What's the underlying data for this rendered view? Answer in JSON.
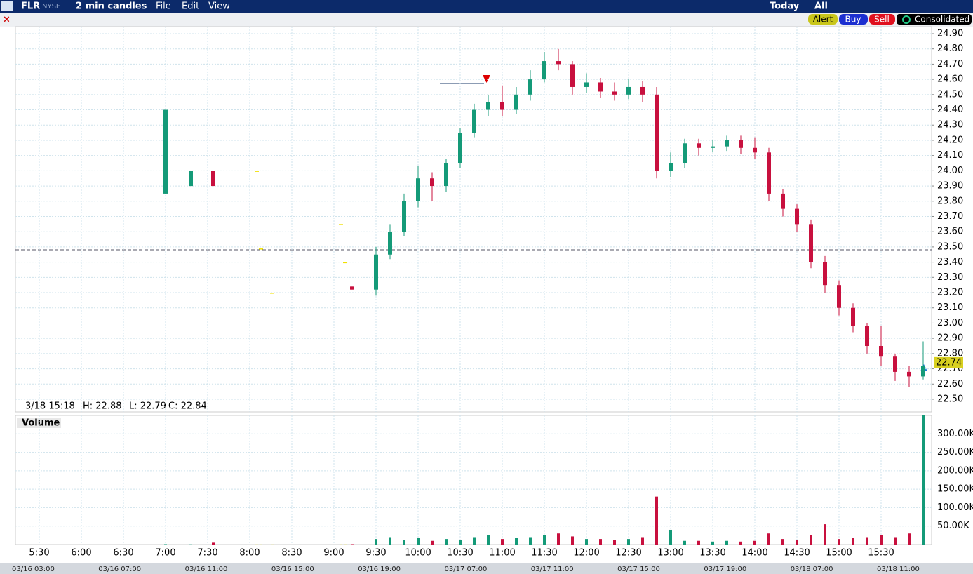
{
  "window": {
    "symbol": "FLR",
    "exchange": "NYSE",
    "interval": "2 min candles",
    "menu": [
      "File",
      "Edit",
      "View"
    ],
    "range": "Today",
    "session": "All",
    "buttons": [
      "Alert",
      "Buy",
      "Sell",
      "Consolidated"
    ],
    "info": [
      "3/18 15:18",
      "H: 22.88",
      "L: 22.79",
      "C: 22.84"
    ],
    "timeline": [
      "03/16 03:00",
      "03/16 07:00",
      "03/16 11:00",
      "03/16 15:00",
      "03/16 19:00",
      "03/17 07:00",
      "03/17 11:00",
      "03/17 15:00",
      "03/17 19:00",
      "03/18 07:00",
      "03/18 11:00"
    ]
  },
  "chart_data": [
    {
      "type": "candlestick",
      "up_color": "#149a78",
      "down_color": "#c8103e",
      "flat_color": "#f0e000",
      "grid": true,
      "last_price": 22.74,
      "x": [
        "7:00",
        "7:18",
        "7:34",
        "8:05",
        "8:08",
        "8:16",
        "9:05",
        "9:08",
        "9:13",
        "9:30",
        "9:40",
        "9:50",
        "10:00",
        "10:10",
        "10:20",
        "10:30",
        "10:40",
        "10:50",
        "11:00",
        "11:10",
        "11:20",
        "11:30",
        "11:40",
        "11:50",
        "12:00",
        "12:10",
        "12:20",
        "12:30",
        "12:40",
        "12:50",
        "13:00",
        "13:10",
        "13:20",
        "13:30",
        "13:40",
        "13:50",
        "14:00",
        "14:10",
        "14:20",
        "14:30",
        "14:40",
        "14:50",
        "15:00",
        "15:10",
        "15:20",
        "15:30",
        "15:40",
        "15:50",
        "16:00"
      ],
      "open": [
        23.85,
        23.9,
        24.0,
        24.0,
        23.49,
        23.2,
        23.65,
        23.4,
        23.24,
        23.22,
        23.45,
        23.6,
        23.8,
        23.95,
        23.9,
        24.05,
        24.25,
        24.4,
        24.45,
        24.4,
        24.5,
        24.6,
        24.72,
        24.7,
        24.55,
        24.58,
        24.52,
        24.5,
        24.55,
        24.5,
        24.0,
        24.05,
        24.18,
        24.15,
        24.16,
        24.2,
        24.15,
        24.12,
        23.85,
        23.75,
        23.65,
        23.4,
        23.25,
        23.1,
        22.98,
        22.85,
        22.78,
        22.68,
        22.65
      ],
      "high": [
        24.4,
        24.0,
        24.0,
        24.0,
        23.49,
        23.2,
        23.65,
        23.4,
        23.24,
        23.5,
        23.65,
        23.85,
        24.03,
        23.99,
        24.08,
        24.28,
        24.44,
        24.5,
        24.56,
        24.55,
        24.66,
        24.78,
        24.8,
        24.72,
        24.64,
        24.61,
        24.58,
        24.6,
        24.59,
        24.55,
        24.12,
        24.21,
        24.21,
        24.2,
        24.23,
        24.23,
        24.22,
        24.15,
        23.88,
        23.78,
        23.68,
        23.44,
        23.28,
        23.13,
        23.0,
        22.98,
        22.8,
        22.72,
        22.88
      ],
      "low": [
        23.85,
        23.9,
        23.9,
        24.0,
        23.49,
        23.2,
        23.65,
        23.4,
        23.22,
        23.18,
        23.42,
        23.57,
        23.76,
        23.8,
        23.86,
        24.02,
        24.22,
        24.36,
        24.36,
        24.37,
        24.46,
        24.58,
        24.66,
        24.5,
        24.51,
        24.48,
        24.46,
        24.47,
        24.45,
        23.95,
        23.96,
        24.02,
        24.1,
        24.12,
        24.13,
        24.11,
        24.08,
        23.8,
        23.7,
        23.6,
        23.36,
        23.2,
        23.05,
        22.94,
        22.8,
        22.72,
        22.62,
        22.58,
        22.63
      ],
      "close": [
        24.4,
        24.0,
        23.9,
        24.0,
        23.49,
        23.2,
        23.65,
        23.4,
        23.22,
        23.45,
        23.6,
        23.8,
        23.95,
        23.9,
        24.05,
        24.25,
        24.4,
        24.45,
        24.4,
        24.5,
        24.6,
        24.72,
        24.7,
        24.55,
        24.58,
        24.52,
        24.5,
        24.55,
        24.5,
        24.0,
        24.05,
        24.18,
        24.15,
        24.16,
        24.2,
        24.15,
        24.12,
        23.85,
        23.75,
        23.65,
        23.4,
        23.25,
        23.1,
        22.98,
        22.85,
        22.78,
        22.68,
        22.65,
        22.72
      ],
      "ylim": [
        22.417,
        24.946
      ],
      "yticks": [
        {
          "value": 22.5,
          "label": "22.50"
        },
        {
          "value": 22.6,
          "label": "22.60"
        },
        {
          "value": 22.7,
          "label": "22.70"
        },
        {
          "value": 22.8,
          "label": "22.80"
        },
        {
          "value": 22.9,
          "label": "22.90"
        },
        {
          "value": 23.0,
          "label": "23.00"
        },
        {
          "value": 23.1,
          "label": "23.10"
        },
        {
          "value": 23.2,
          "label": "23.20"
        },
        {
          "value": 23.3,
          "label": "23.30"
        },
        {
          "value": 23.4,
          "label": "23.40"
        },
        {
          "value": 23.5,
          "label": "23.50"
        },
        {
          "value": 23.6,
          "label": "23.60"
        },
        {
          "value": 23.7,
          "label": "23.70"
        },
        {
          "value": 23.8,
          "label": "23.80"
        },
        {
          "value": 23.9,
          "label": "23.90"
        },
        {
          "value": 24.0,
          "label": "24.00"
        },
        {
          "value": 24.1,
          "label": "24.10"
        },
        {
          "value": 24.2,
          "label": "24.20"
        },
        {
          "value": 24.3,
          "label": "24.30"
        },
        {
          "value": 24.4,
          "label": "24.40"
        },
        {
          "value": 24.5,
          "label": "24.50"
        },
        {
          "value": 24.6,
          "label": "24.60"
        },
        {
          "value": 24.7,
          "label": "24.70"
        },
        {
          "value": 24.8,
          "label": "24.80"
        },
        {
          "value": 24.9,
          "label": "24.90"
        }
      ],
      "xticks": [
        "5:30",
        "6:00",
        "6:30",
        "7:00",
        "7:30",
        "8:00",
        "8:30",
        "9:00",
        "9:30",
        "10:00",
        "10:30",
        "11:00",
        "11:30",
        "12:00",
        "12:30",
        "13:00",
        "13:30",
        "14:00",
        "14:30",
        "15:00",
        "15:30"
      ]
    },
    {
      "type": "bar",
      "title": "Volume",
      "grid": true,
      "values": [
        1000,
        500,
        5000,
        200,
        200,
        200,
        300,
        300,
        1000,
        15000,
        20000,
        12000,
        18000,
        10000,
        15000,
        12000,
        20000,
        25000,
        15000,
        18000,
        20000,
        25000,
        30000,
        22000,
        15000,
        15000,
        12000,
        15000,
        20000,
        130000,
        40000,
        10000,
        10000,
        8000,
        10000,
        8000,
        10000,
        30000,
        15000,
        12000,
        25000,
        55000,
        15000,
        18000,
        20000,
        25000,
        20000,
        30000,
        350000
      ],
      "ylim": [
        0,
        350000
      ],
      "yticks": [
        {
          "value": 50000,
          "label": "50.00K"
        },
        {
          "value": 100000,
          "label": "100.00K"
        },
        {
          "value": 150000,
          "label": "150.00K"
        },
        {
          "value": 200000,
          "label": "200.00K"
        },
        {
          "value": 250000,
          "label": "250.00K"
        },
        {
          "value": 300000,
          "label": "300.00K"
        }
      ]
    }
  ]
}
